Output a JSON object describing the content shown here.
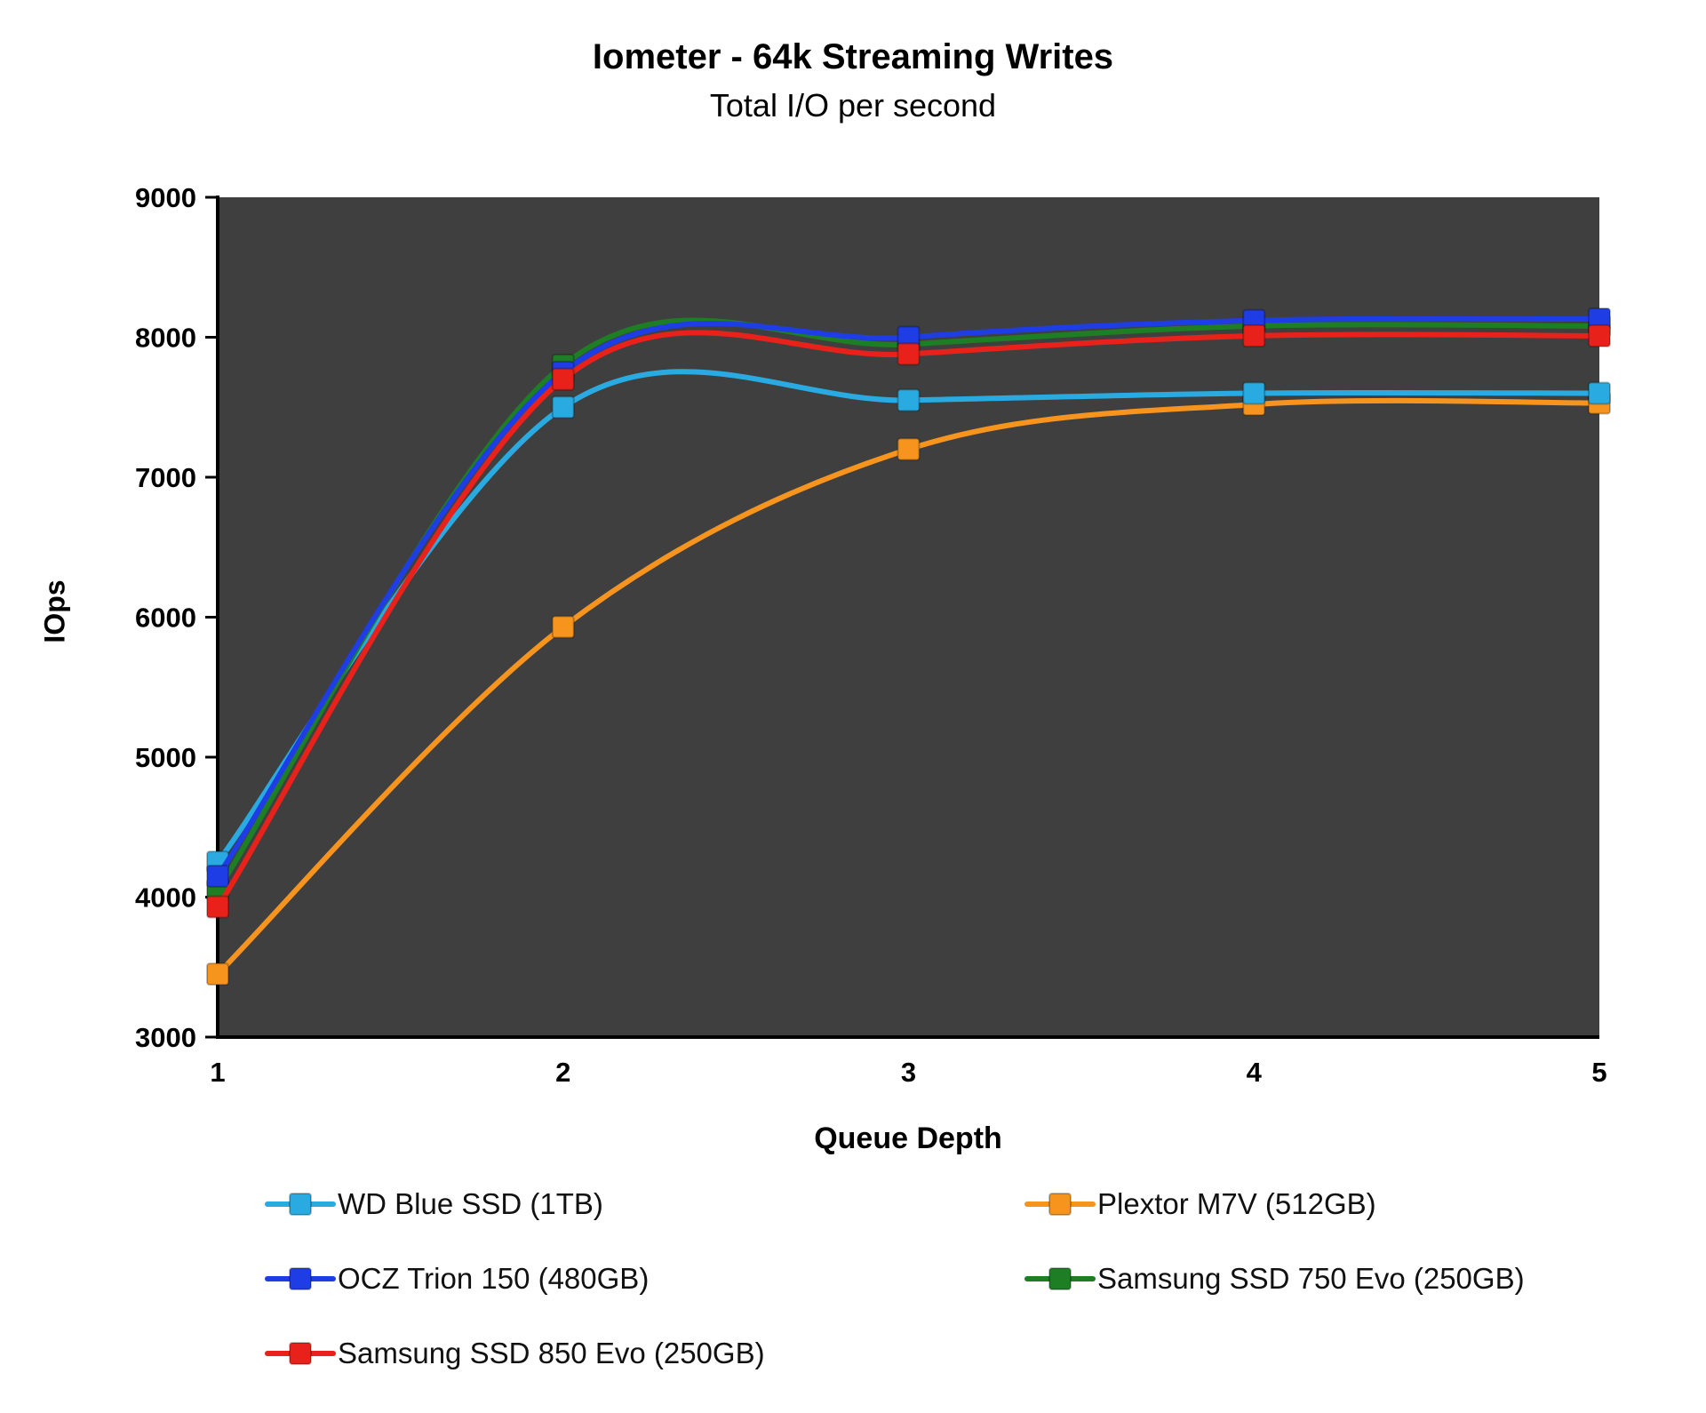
{
  "chart_data": {
    "type": "line",
    "title": "Iometer - 64k Streaming Writes",
    "subtitle": "Total I/O per second",
    "xlabel": "Queue Depth",
    "ylabel": "IOps",
    "x": [
      1,
      2,
      3,
      4,
      5
    ],
    "x_tick_labels": [
      "1",
      "2",
      "3",
      "4",
      "5"
    ],
    "ylim": [
      3000,
      9000
    ],
    "y_ticks": [
      3000,
      4000,
      5000,
      6000,
      7000,
      8000,
      9000
    ],
    "grid": false,
    "legend_position": "bottom",
    "plot_background": "#3f3f3f",
    "axis_color": "#000000",
    "series": [
      {
        "name": "WD Blue SSD (1TB)",
        "color": "#29abe2",
        "values": [
          4250,
          7500,
          7550,
          7600,
          7600
        ]
      },
      {
        "name": "Plextor M7V (512GB)",
        "color": "#f7941e",
        "values": [
          3450,
          5930,
          7200,
          7520,
          7530
        ]
      },
      {
        "name": "OCZ Trion 150 (480GB)",
        "color": "#1f3de4",
        "values": [
          4150,
          7750,
          8000,
          8120,
          8130
        ]
      },
      {
        "name": "Samsung SSD 750 Evo (250GB)",
        "color": "#1e7e24",
        "values": [
          4050,
          7800,
          7950,
          8080,
          8080
        ]
      },
      {
        "name": "Samsung SSD 850 Evo (250GB)",
        "color": "#e8221a",
        "values": [
          3930,
          7700,
          7880,
          8010,
          8010
        ]
      }
    ],
    "draw_order": [
      1,
      0,
      3,
      2,
      4
    ]
  }
}
